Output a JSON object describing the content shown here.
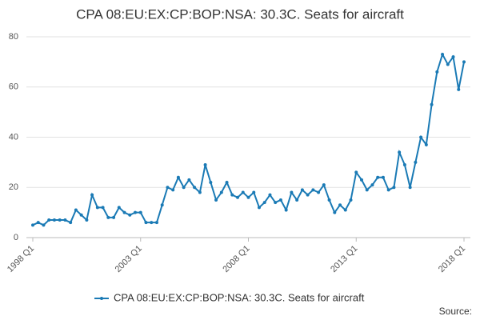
{
  "chart_data": {
    "type": "line",
    "title": "CPA 08:EU:EX:CP:BOP:NSA: 30.3C. Seats for aircraft",
    "categories": [
      "1998 Q1",
      null,
      null,
      null,
      null,
      null,
      null,
      null,
      null,
      null,
      null,
      null,
      null,
      null,
      null,
      null,
      null,
      null,
      null,
      null,
      "2003 Q1",
      null,
      null,
      null,
      null,
      null,
      null,
      null,
      null,
      null,
      null,
      null,
      null,
      null,
      null,
      null,
      null,
      null,
      null,
      null,
      "2008 Q1",
      null,
      null,
      null,
      null,
      null,
      null,
      null,
      null,
      null,
      null,
      null,
      null,
      null,
      null,
      null,
      null,
      null,
      null,
      null,
      "2013 Q1",
      null,
      null,
      null,
      null,
      null,
      null,
      null,
      null,
      null,
      null,
      null,
      null,
      null,
      null,
      null,
      null,
      null,
      null,
      null,
      "2018 Q1"
    ],
    "series": [
      {
        "name": "CPA 08:EU:EX:CP:BOP:NSA: 30.3C. Seats for aircraft",
        "color": "#1a7ab5",
        "values": [
          5,
          6,
          5,
          7,
          7,
          7,
          7,
          6,
          11,
          9,
          7,
          17,
          12,
          12,
          8,
          8,
          12,
          10,
          9,
          10,
          10,
          6,
          6,
          6,
          13,
          20,
          19,
          24,
          20,
          23,
          20,
          18,
          29,
          22,
          15,
          18,
          22,
          17,
          16,
          18,
          16,
          18,
          12,
          14,
          17,
          14,
          15,
          11,
          18,
          15,
          19,
          17,
          19,
          18,
          21,
          15,
          10,
          13,
          11,
          15,
          26,
          23,
          19,
          21,
          24,
          24,
          19,
          20,
          34,
          29,
          20,
          30,
          40,
          37,
          53,
          66,
          73,
          69,
          72,
          59,
          70
        ]
      }
    ],
    "ylim": [
      0,
      80
    ],
    "yticks": [
      0,
      20,
      40,
      60,
      80
    ],
    "grid": true,
    "source": "Source:"
  }
}
